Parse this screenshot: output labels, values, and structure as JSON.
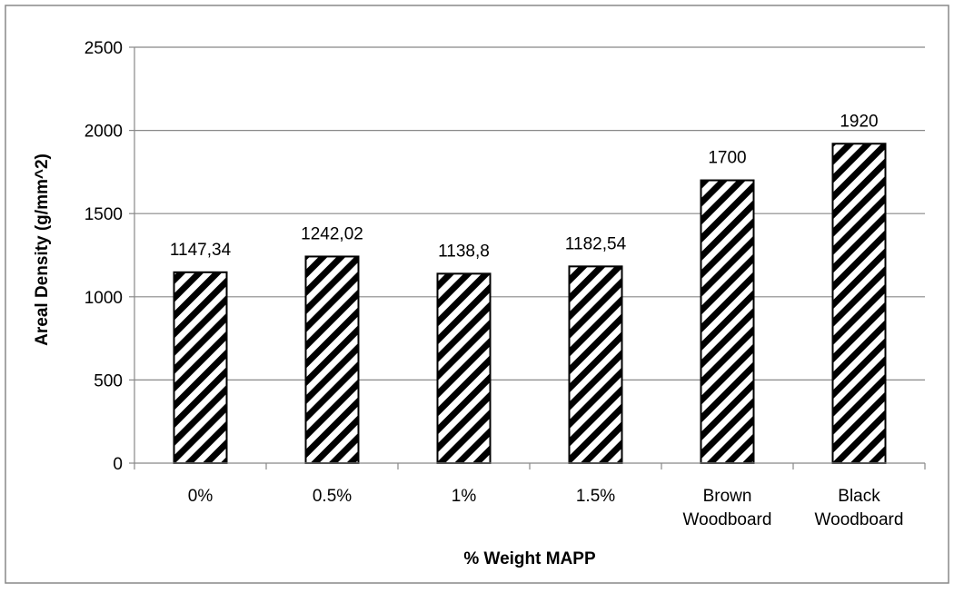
{
  "chart_data": {
    "type": "bar",
    "categories": [
      [
        "0%"
      ],
      [
        "0.5%"
      ],
      [
        "1%"
      ],
      [
        "1.5%"
      ],
      [
        "Brown",
        "Woodboard"
      ],
      [
        "Black",
        "Woodboard"
      ]
    ],
    "values": [
      1147.34,
      1242.02,
      1138.8,
      1182.54,
      1700,
      1920
    ],
    "data_labels": [
      "1147,34",
      "1242,02",
      "1138,8",
      "1182,54",
      "1700",
      "1920"
    ],
    "xlabel": "% Weight MAPP",
    "ylabel": "Areal Density (g/mm^2)",
    "ylim": [
      0,
      2500
    ],
    "yticks": [
      0,
      500,
      1000,
      1500,
      2000,
      2500
    ],
    "grid": true,
    "legend": "none",
    "bar_fill": "diagonal-stripes",
    "colors": {
      "bar_stripe": "#000000",
      "bar_background": "#ffffff",
      "grid": "#888888",
      "frame": "#888888"
    }
  }
}
